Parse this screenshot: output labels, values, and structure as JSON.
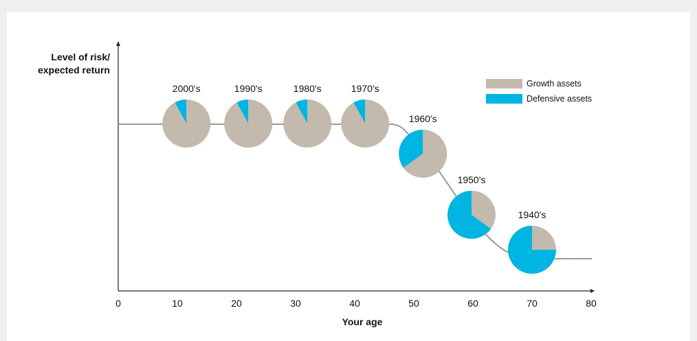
{
  "chart_data": {
    "type": "pie",
    "ylabel_lines": [
      "Level of risk/",
      "expected return"
    ],
    "xlabel": "Your age",
    "xlim": [
      0,
      80
    ],
    "xticks": [
      0,
      10,
      20,
      30,
      40,
      50,
      60,
      70,
      80
    ],
    "legend": {
      "placement": "top-right",
      "entries": [
        {
          "name": "Growth assets",
          "color": "#c4b9ad"
        },
        {
          "name": "Defensive assets",
          "color": "#00b5e2"
        }
      ]
    },
    "pies": [
      {
        "label": "2000's",
        "age": 12,
        "growth": 92,
        "defensive": 8
      },
      {
        "label": "1990's",
        "age": 22,
        "growth": 92,
        "defensive": 8
      },
      {
        "label": "1980's",
        "age": 32,
        "growth": 92,
        "defensive": 8
      },
      {
        "label": "1970's",
        "age": 42,
        "growth": 92,
        "defensive": 8
      },
      {
        "label": "1960's",
        "age": 52,
        "growth": 65,
        "defensive": 35
      },
      {
        "label": "1950's",
        "age": 60,
        "growth": 35,
        "defensive": 65
      },
      {
        "label": "1940's",
        "age": 70,
        "growth": 25,
        "defensive": 75
      }
    ],
    "curve_color": "#9a9a9a",
    "axis_color": "#222222"
  }
}
